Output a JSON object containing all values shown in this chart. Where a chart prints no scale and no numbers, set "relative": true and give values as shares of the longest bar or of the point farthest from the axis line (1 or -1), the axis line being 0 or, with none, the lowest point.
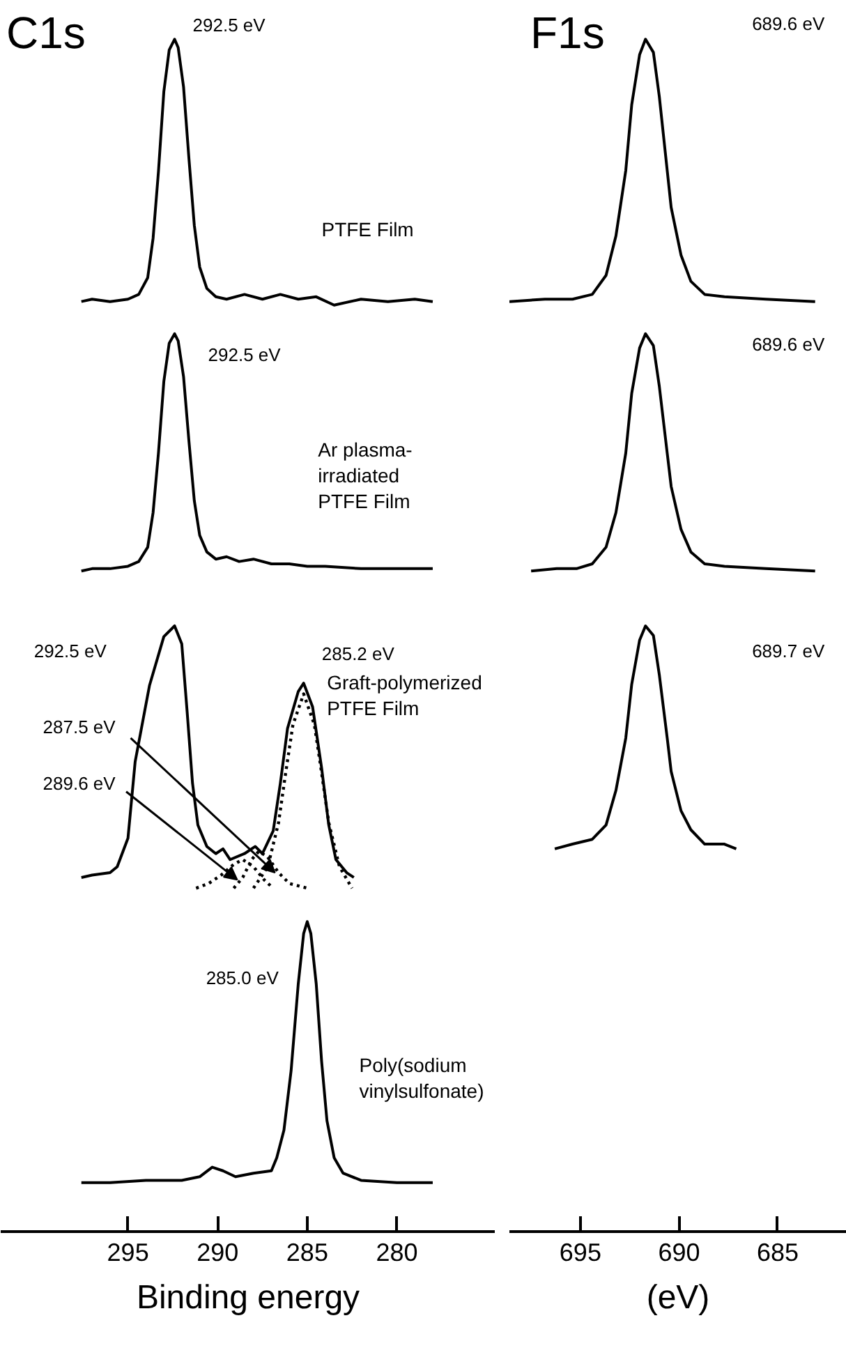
{
  "chart_data": [
    {
      "type": "line",
      "title": "C1s",
      "xlabel": "Binding energy",
      "relative": true,
      "tick_labels": "x",
      "xlim": [
        302.1,
        274.5
      ],
      "xticks": [
        295,
        290,
        285,
        280
      ],
      "annotations": [
        {
          "text": "292.5 eV",
          "x": 292.4,
          "y": 1.0
        },
        {
          "text": "292.5 eV",
          "x": 292.4,
          "y": 0.753
        },
        "292.5 eV",
        {
          "text": "285.2 eV",
          "x": 285.2,
          "y": 0.46
        },
        {
          "text": "287.5 eV",
          "x": 286.8,
          "y": 0.301
        },
        {
          "text": "289.6 eV",
          "x": 288.9,
          "y": 0.295
        },
        "285.0 eV"
      ],
      "series": [
        {
          "name": "PTFE Film",
          "color": "#000000",
          "x": [
            297.6,
            297,
            296,
            295,
            294.4,
            293.9,
            293.6,
            293.3,
            293.0,
            292.7,
            292.4,
            292.2,
            291.9,
            291.6,
            291.3,
            291.0,
            290.6,
            290.1,
            289.5,
            288.5,
            287.5,
            286.5,
            285.5,
            284.5,
            283.5,
            282,
            280.5,
            279,
            278.0
          ],
          "values": [
            0.78,
            0.782,
            0.78,
            0.782,
            0.786,
            0.8,
            0.833,
            0.889,
            0.956,
            0.991,
            1.0,
            0.993,
            0.96,
            0.9,
            0.844,
            0.809,
            0.791,
            0.784,
            0.782,
            0.786,
            0.782,
            0.786,
            0.782,
            0.784,
            0.777,
            0.782,
            0.78,
            0.782,
            0.78
          ]
        },
        {
          "name": "Ar plasma-\nirradiated\nPTFE Film",
          "color": "#000000",
          "x": [
            297.6,
            297,
            296,
            295,
            294.4,
            293.9,
            293.6,
            293.3,
            293.0,
            292.7,
            292.4,
            292.2,
            291.9,
            291.6,
            291.3,
            291.0,
            290.6,
            290.1,
            289.5,
            288.8,
            288,
            287,
            286,
            285,
            284,
            282,
            280,
            278.0
          ],
          "values": [
            0.554,
            0.556,
            0.556,
            0.558,
            0.562,
            0.574,
            0.603,
            0.653,
            0.713,
            0.745,
            0.753,
            0.747,
            0.717,
            0.663,
            0.613,
            0.584,
            0.57,
            0.564,
            0.566,
            0.562,
            0.564,
            0.56,
            0.56,
            0.558,
            0.558,
            0.556,
            0.556,
            0.556
          ]
        },
        {
          "name": "Graft-polymerized\nPTFE Film",
          "color": "#000000",
          "x": [
            297.6,
            297,
            296,
            295.6,
            295.0,
            294.6,
            293.8,
            293.0,
            292.4,
            292.0,
            291.7,
            291.4,
            291.1,
            290.6,
            290.1,
            289.7,
            289.3,
            288.5,
            287.9,
            287.5,
            286.9,
            286.5,
            286.1,
            285.5,
            285.2,
            284.7,
            284.2,
            283.8,
            283.4,
            282.8,
            282.4
          ],
          "values": [
            0.297,
            0.299,
            0.301,
            0.306,
            0.33,
            0.394,
            0.458,
            0.499,
            0.508,
            0.493,
            0.436,
            0.376,
            0.341,
            0.323,
            0.317,
            0.321,
            0.312,
            0.317,
            0.323,
            0.317,
            0.336,
            0.376,
            0.422,
            0.453,
            0.46,
            0.44,
            0.389,
            0.341,
            0.312,
            0.301,
            0.297
          ]
        },
        {
          "color": "#000000",
          "line_style": "dotted",
          "x": [
            291.2,
            290.5,
            289.8,
            289.1,
            288.6,
            288.0,
            287.4,
            286.9
          ],
          "values": [
            0.288,
            0.292,
            0.299,
            0.308,
            0.312,
            0.306,
            0.295,
            0.288
          ]
        },
        {
          "color": "#000000",
          "line_style": "dotted",
          "x": [
            289.1,
            288.6,
            288.1,
            287.7,
            287.2,
            286.6,
            286.0,
            285.0
          ],
          "values": [
            0.288,
            0.297,
            0.312,
            0.319,
            0.314,
            0.301,
            0.292,
            0.288
          ]
        },
        {
          "color": "#000000",
          "line_style": "dotted",
          "x": [
            288.0,
            287.2,
            286.6,
            286.2,
            285.8,
            285.2,
            284.6,
            284.2,
            283.8,
            283.2,
            282.5
          ],
          "values": [
            0.288,
            0.306,
            0.343,
            0.385,
            0.425,
            0.451,
            0.425,
            0.385,
            0.343,
            0.306,
            0.288
          ]
        },
        {
          "name": "Poly(sodium\nvinylsulfonate)",
          "color": "#000000",
          "x": [
            297.6,
            296,
            294,
            292,
            291,
            290.3,
            289.7,
            289,
            288,
            287,
            286.7,
            286.3,
            285.9,
            285.5,
            285.2,
            285.0,
            284.8,
            284.5,
            284.2,
            283.9,
            283.5,
            283.0,
            282,
            280,
            278.0
          ],
          "values": [
            0.041,
            0.041,
            0.043,
            0.043,
            0.046,
            0.054,
            0.051,
            0.046,
            0.049,
            0.051,
            0.062,
            0.085,
            0.135,
            0.208,
            0.25,
            0.26,
            0.25,
            0.208,
            0.143,
            0.093,
            0.062,
            0.049,
            0.043,
            0.041,
            0.041
          ]
        }
      ]
    },
    {
      "type": "line",
      "title": "F1s",
      "xlabel": "(eV)",
      "relative": true,
      "tick_labels": "x",
      "xlim": [
        698.6,
        681.5
      ],
      "xticks": [
        695,
        690,
        685
      ],
      "annotations": [
        "689.6 eV",
        "689.6 eV",
        "689.7 eV"
      ],
      "series": [
        {
          "color": "#000000",
          "x": [
            698.6,
            696.8,
            695.4,
            694.4,
            693.7,
            693.2,
            692.7,
            692.4,
            692.0,
            691.7,
            691.3,
            691.0,
            690.6,
            690.4,
            689.9,
            689.4,
            688.7,
            687.7,
            685.6,
            683.1
          ],
          "values": [
            0.78,
            0.782,
            0.782,
            0.786,
            0.802,
            0.835,
            0.89,
            0.945,
            0.987,
            1.0,
            0.989,
            0.952,
            0.89,
            0.859,
            0.819,
            0.797,
            0.786,
            0.784,
            0.782,
            0.78
          ]
        },
        {
          "color": "#000000",
          "x": [
            697.5,
            696.2,
            695.2,
            694.4,
            693.7,
            693.2,
            692.7,
            692.4,
            692.0,
            691.7,
            691.3,
            691.0,
            690.6,
            690.4,
            689.9,
            689.4,
            688.7,
            687.7,
            685.6,
            683.1
          ],
          "values": [
            0.554,
            0.556,
            0.556,
            0.56,
            0.574,
            0.603,
            0.653,
            0.703,
            0.741,
            0.753,
            0.743,
            0.709,
            0.653,
            0.625,
            0.589,
            0.57,
            0.56,
            0.558,
            0.556,
            0.554
          ]
        },
        {
          "color": "#000000",
          "x": [
            696.3,
            695.4,
            694.4,
            693.7,
            693.2,
            692.7,
            692.4,
            692.0,
            691.7,
            691.3,
            691.0,
            690.6,
            690.4,
            689.9,
            689.4,
            688.7,
            687.7,
            687.1
          ],
          "values": [
            0.321,
            0.325,
            0.329,
            0.341,
            0.37,
            0.414,
            0.459,
            0.496,
            0.508,
            0.5,
            0.467,
            0.414,
            0.386,
            0.353,
            0.337,
            0.325,
            0.325,
            0.321
          ]
        }
      ]
    }
  ]
}
